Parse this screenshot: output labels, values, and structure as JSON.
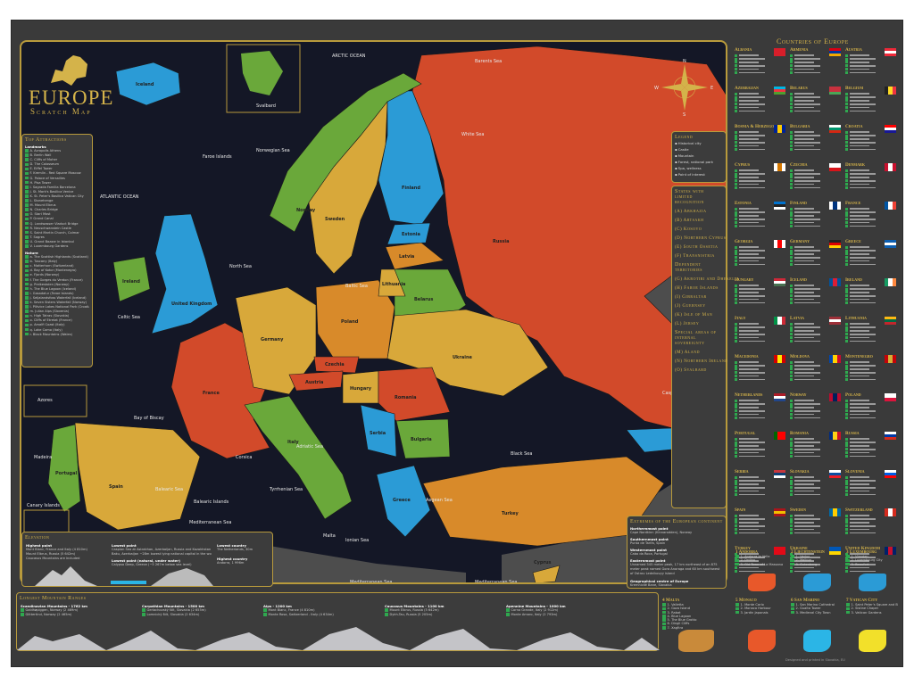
{
  "title": "EUROPE",
  "subtitle": "Scratch Map",
  "colors": {
    "accent": "#d4b34a",
    "frame": "#3a3a3a",
    "sea": "#141726",
    "check": "#2fa84f"
  },
  "map": {
    "seas": [
      "ARCTIC OCEAN",
      "Barents Sea",
      "White Sea",
      "Norwegian Sea",
      "ATLANTIC OCEAN",
      "North Sea",
      "Baltic Sea",
      "Celtic Sea",
      "Bay of Biscay",
      "Black Sea",
      "Caspian Sea",
      "Adriatic Sea",
      "Tyrrhenian Sea",
      "Balearic Sea",
      "Mediterranean Sea",
      "Ionian Sea",
      "Aegean Sea",
      "Mediterranean Sea",
      "Mediterranean Sea"
    ],
    "countries": [
      "Russia",
      "Finland",
      "Norway",
      "Sweden",
      "Iceland",
      "United Kingdom",
      "Ireland",
      "France",
      "Spain",
      "Portugal",
      "Germany",
      "Poland",
      "Belarus",
      "Ukraine",
      "Italy",
      "Romania",
      "Hungary",
      "Serbia",
      "Greece",
      "Bulgaria",
      "Turkey",
      "Latvia",
      "Lithuania",
      "Estonia",
      "Austria",
      "Czechia",
      "Cyprus"
    ],
    "insets": [
      "Svalbard",
      "Faroe Islands",
      "Azores",
      "Madeira",
      "Canary Islands",
      "Malta",
      "Balearic Islands",
      "Corsica"
    ],
    "compass": [
      "N",
      "S",
      "E",
      "W"
    ]
  },
  "attractions": {
    "heading": "Top Attractions",
    "landmarks_label": "Landmarks",
    "nature_label": "Nature",
    "landmarks": [
      "A. Acropolis Athens",
      "B. Berlin Wall",
      "C. Cliffs of Moher",
      "D. The Colosseum",
      "E. Eiffel Tower",
      "F. Kremlin - Red Square Moscow",
      "G. Palace of Versailles",
      "H. Pisa Tower",
      "I. Sagrada Familia Barcelona",
      "J. St. Mark's Basilica Venice",
      "K. St. Peter's Basilica Vatican City",
      "L. Stonehenge",
      "M. Mount Elbrus",
      "N. Charles Bridge",
      "O. Stari Most",
      "P. Grand Canal",
      "Q. Landwasser Viaduct Bridge",
      "R. Neuschwanstein Castle",
      "S. Saint Martin Church, Colmar",
      "T. Sagres",
      "U. Grand Bazaar in Istanbul",
      "V. Luxembourg Gardens"
    ],
    "nature": [
      "a. The Scottish Highlands (Scotland)",
      "b. Tuscany (Italy)",
      "c. Matterhorn (Switzerland)",
      "d. Bay of Kotor (Montenegro)",
      "e. Fjords (Norway)",
      "f. The Gorges du Verdon (France)",
      "g. Preikestolen (Norway)",
      "h. The Blue Lagoon (Iceland)",
      "i. Gasadalur (Faroe Islands)",
      "j. Seljalandsfoss Waterfall (Iceland)",
      "k. Seven Sisters Waterfall (Norway)",
      "l. Plitvice Lakes National Park (Croatia)",
      "m. Julian Alps (Slovenia)",
      "n. High Tatras (Slovakia)",
      "o. Cliffs of Etretat (France)",
      "p. Amalfi Coast (Italy)",
      "q. Lake Como (Italy)",
      "r. Black Mountains (Wales)"
    ]
  },
  "legend": {
    "heading": "Legend",
    "items": [
      "Historical city",
      "Castle",
      "Mountain",
      "Forest, national park",
      "Spa, wellness",
      "Point of interest"
    ]
  },
  "limited": {
    "heading": "States with limited recognition",
    "items": [
      [
        "A",
        "Abkhazia"
      ],
      [
        "B",
        "Artsakh"
      ],
      [
        "C",
        "Kosovo"
      ],
      [
        "D",
        "Northern Cyprus"
      ],
      [
        "E",
        "South Ossetia"
      ],
      [
        "F",
        "Transnistria"
      ]
    ],
    "dep_heading": "Dependent territories",
    "dep": [
      [
        "G",
        "Akrotiri and Dhekelia"
      ],
      [
        "H",
        "Faroe Islands"
      ],
      [
        "I",
        "Gibraltar"
      ],
      [
        "J",
        "Guernsey"
      ],
      [
        "K",
        "Isle of Man"
      ],
      [
        "L",
        "Jersey"
      ]
    ],
    "special_heading": "Special areas of internal sovereignty",
    "special": [
      [
        "M",
        "Aland"
      ],
      [
        "N",
        "Northern Ireland"
      ],
      [
        "O",
        "Svalbard"
      ]
    ]
  },
  "elevation": {
    "heading": "Elevation",
    "highest_label": "Highest point",
    "highest": [
      "Mont Blanc, France and Italy (4 810m)",
      "Mount Elbrus, Russia (5 642m)",
      "Caucasus Mountains are included"
    ],
    "lowest_label": "Lowest point",
    "lowest": [
      "Caspian Sea at Astrakhan, Azerbaijan, Russia and Kazakhstan −28m",
      "Baku, Azerbaijan −28m lowest lying national capital in the world"
    ],
    "under_label": "Lowest point (natural, under water)",
    "under": [
      "Calypso Deep, Greece (−5 267m below sea level)"
    ],
    "lowc_label": "Lowest country",
    "lowc": "The Netherlands, 30m",
    "highc_label": "Highest country",
    "highc": "Andorra, 1 996m"
  },
  "extremes": {
    "heading": "Extremes of the European continent",
    "items": [
      [
        "Northernmost point",
        "Cape Nordkinn (Kinnarodden), Norway"
      ],
      [
        "Southernmost point",
        "Punta de Tarifa, Spain"
      ],
      [
        "Westernmost point",
        "Cabo da Roca, Portugal"
      ],
      [
        "Easternmost point",
        "Unnamed 545 meter peak, 17 km northeast of an 875 meter peak named Gora Anoraga and 60 km southwest of Ostrov Lednikovyy island"
      ],
      [
        "Geographical centre of Europe",
        "Kremnické Bane, Slovakia"
      ]
    ]
  },
  "ranges": {
    "heading": "Longest Mountain Ranges",
    "items": [
      [
        "Scandinavian Mountains - 1762 km",
        "Galdhøpiggen, Norway (2 469m)",
        "Glittertind, Norway (2 465m)"
      ],
      [
        "Carpathian Mountains - 1500 km",
        "Gerlachovský štít, Slovakia (2 655m)",
        "Lomnický štít, Slovakia (2 634m)"
      ],
      [
        "Alps - 1200 km",
        "Mont Blanc, France (4 810m)",
        "Monte Rosa, Switzerland - Italy (4 634m)"
      ],
      [
        "Caucasus Mountains - 1100 km",
        "Mount Elbrus, Russia (5 642m)",
        "Dykh-Tau, Russia (5 205m)"
      ],
      [
        "Apennine Mountains - 1000 km",
        "Corno Grande, Italy (2 912m)",
        "Monte Amaro, Italy (2 793m)"
      ]
    ]
  },
  "countries_heading": "Countries of Europe",
  "countries": [
    {
      "name": "Albania",
      "flag": [
        "#d81e2a",
        "#d81e2a"
      ]
    },
    {
      "name": "Armenia",
      "flag": [
        "#d90012",
        "#0033a0",
        "#f2a800"
      ],
      "h": 1
    },
    {
      "name": "Austria",
      "flag": [
        "#ed2939",
        "#fff",
        "#ed2939"
      ],
      "h": 1
    },
    {
      "name": "Azerbaijan",
      "flag": [
        "#00b5e2",
        "#ef3340",
        "#509e2f"
      ],
      "h": 1
    },
    {
      "name": "Belarus",
      "flag": [
        "#c8313e",
        "#c8313e",
        "#4aa657"
      ],
      "h": 1
    },
    {
      "name": "Belgium",
      "flag": [
        "#222",
        "#fdda24",
        "#ef3340"
      ]
    },
    {
      "name": "Bosnia & Herzegovina",
      "flag": [
        "#002395",
        "#fecb00",
        "#002395"
      ]
    },
    {
      "name": "Bulgaria",
      "flag": [
        "#fff",
        "#00966e",
        "#d62612"
      ],
      "h": 1
    },
    {
      "name": "Croatia",
      "flag": [
        "#ff0000",
        "#fff",
        "#171796"
      ],
      "h": 1
    },
    {
      "name": "Cyprus",
      "flag": [
        "#fff",
        "#d57800",
        "#fff"
      ]
    },
    {
      "name": "Czechia",
      "flag": [
        "#fff",
        "#d7141a"
      ],
      "h": 1
    },
    {
      "name": "Denmark",
      "flag": [
        "#c8102e",
        "#fff",
        "#c8102e"
      ]
    },
    {
      "name": "Estonia",
      "flag": [
        "#0072ce",
        "#222",
        "#fff"
      ],
      "h": 1
    },
    {
      "name": "Finland",
      "flag": [
        "#fff",
        "#003580",
        "#fff"
      ]
    },
    {
      "name": "France",
      "flag": [
        "#0055a4",
        "#fff",
        "#ef4135"
      ]
    },
    {
      "name": "Georgia",
      "flag": [
        "#fff",
        "#ff0000",
        "#fff"
      ]
    },
    {
      "name": "Germany",
      "flag": [
        "#222",
        "#dd0000",
        "#ffce00"
      ],
      "h": 1
    },
    {
      "name": "Greece",
      "flag": [
        "#0d5eaf",
        "#fff",
        "#0d5eaf"
      ],
      "h": 1
    },
    {
      "name": "Hungary",
      "flag": [
        "#ce2939",
        "#fff",
        "#477050"
      ],
      "h": 1
    },
    {
      "name": "Iceland",
      "flag": [
        "#02529c",
        "#dc1e35",
        "#02529c"
      ]
    },
    {
      "name": "Ireland",
      "flag": [
        "#169b62",
        "#fff",
        "#ff883e"
      ]
    },
    {
      "name": "Italy",
      "flag": [
        "#009246",
        "#fff",
        "#ce2b37"
      ]
    },
    {
      "name": "Latvia",
      "flag": [
        "#9e3039",
        "#fff",
        "#9e3039"
      ],
      "h": 1
    },
    {
      "name": "Lithuania",
      "flag": [
        "#fdb913",
        "#006a44",
        "#c1272d"
      ],
      "h": 1
    },
    {
      "name": "Macedonia",
      "flag": [
        "#d20000",
        "#ffe600",
        "#d20000"
      ]
    },
    {
      "name": "Moldova",
      "flag": [
        "#0046ae",
        "#ffd200",
        "#cc092f"
      ]
    },
    {
      "name": "Montenegro",
      "flag": [
        "#c40308",
        "#d4af37",
        "#c40308"
      ]
    },
    {
      "name": "Netherlands",
      "flag": [
        "#ae1c28",
        "#fff",
        "#21468b"
      ],
      "h": 1
    },
    {
      "name": "Norway",
      "flag": [
        "#ba0c2f",
        "#00205b",
        "#ba0c2f"
      ]
    },
    {
      "name": "Poland",
      "flag": [
        "#fff",
        "#dc143c"
      ],
      "h": 1
    },
    {
      "name": "Portugal",
      "flag": [
        "#006600",
        "#ff0000",
        "#ff0000"
      ]
    },
    {
      "name": "Romania",
      "flag": [
        "#002b7f",
        "#fcd116",
        "#ce1126"
      ]
    },
    {
      "name": "Russia",
      "flag": [
        "#fff",
        "#0039a6",
        "#d52b1e"
      ],
      "h": 1
    },
    {
      "name": "Serbia",
      "flag": [
        "#c6363c",
        "#0c4076",
        "#fff"
      ],
      "h": 1
    },
    {
      "name": "Slovakia",
      "flag": [
        "#fff",
        "#0b4ea2",
        "#ee1c25"
      ],
      "h": 1
    },
    {
      "name": "Slovenia",
      "flag": [
        "#fff",
        "#005ce6",
        "#ff0000"
      ],
      "h": 1
    },
    {
      "name": "Spain",
      "flag": [
        "#aa151b",
        "#f1bf00",
        "#aa151b"
      ],
      "h": 1
    },
    {
      "name": "Sweden",
      "flag": [
        "#006aa7",
        "#fecc00",
        "#006aa7"
      ]
    },
    {
      "name": "Switzerland",
      "flag": [
        "#d52b1e",
        "#fff",
        "#d52b1e"
      ]
    },
    {
      "name": "Turkey",
      "flag": [
        "#e30a17",
        "#e30a17"
      ]
    },
    {
      "name": "Ukraine",
      "flag": [
        "#0057b7",
        "#ffd700"
      ],
      "h": 1
    },
    {
      "name": "United Kingdom",
      "flag": [
        "#012169",
        "#c8102e",
        "#012169"
      ]
    }
  ],
  "microstates": [
    {
      "num": "1",
      "name": "Andorra",
      "items": [
        "1. Andorra la Vella",
        "2. Ordino",
        "3. Old Town of La Massana"
      ],
      "color": "#e8582a"
    },
    {
      "num": "2",
      "name": "Liechtenstein",
      "items": [
        "1. Vaduz",
        "2. Malbun",
        "3. Gutenberg"
      ],
      "color": "#2b9bd6"
    },
    {
      "num": "3",
      "name": "Luxembourg",
      "items": [
        "1. Vianden",
        "2. Luxembourg City",
        "3. Beaufort"
      ],
      "color": "#2b9bd6"
    },
    {
      "num": "4",
      "name": "Malta",
      "items": [
        "1. Valletta",
        "2. Gozo Island",
        "3. Rabat",
        "4. Blue Lagoon",
        "5. The Blue Grotto",
        "6. Dingli Cliffs",
        "7. Xagħra"
      ],
      "color": "#c98a3a"
    },
    {
      "num": "5",
      "name": "Monaco",
      "items": [
        "1. Monte Carlo",
        "2. Monaco Harbour",
        "3. Jardin Japonais"
      ],
      "color": "#e8582a"
    },
    {
      "num": "6",
      "name": "San Marino",
      "items": [
        "1. San Marino Cathedral",
        "2. Guaita Tower",
        "3. Medieval City Town"
      ],
      "color": "#2bb5e6"
    },
    {
      "num": "7",
      "name": "Vatican City",
      "items": [
        "1. Saint Peter's Square and Basilica",
        "2. Sistine Chapel",
        "3. Vatican Gardens"
      ],
      "color": "#f2e02a"
    }
  ],
  "footer": "Designed and printed in Slovakia, EU"
}
